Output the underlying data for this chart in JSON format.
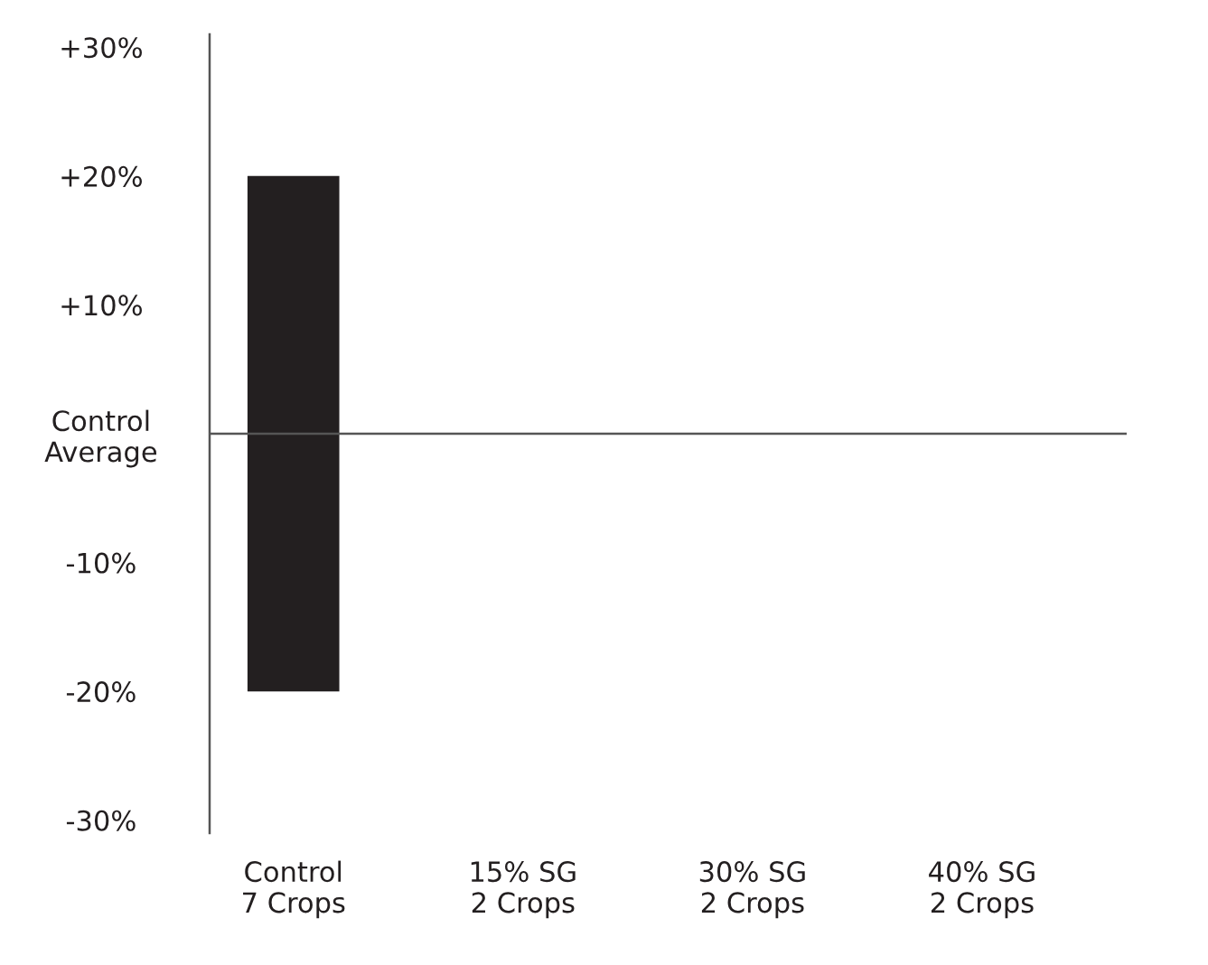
{
  "chart_data": {
    "type": "bar",
    "categories": [
      "Control\n7 Crops",
      "15% SG\n2 Crops",
      "30% SG\n2 Crops",
      "40% SG\n2 Crops"
    ],
    "values": [
      40,
      null,
      null,
      null
    ],
    "base": [
      -20,
      null,
      null,
      null
    ],
    "color": "#231f20",
    "ylim": [
      -31,
      31
    ],
    "yticks": [
      {
        "value": 30,
        "label": "+30%"
      },
      {
        "value": 20,
        "label": "+20%"
      },
      {
        "value": 10,
        "label": "+10%"
      },
      {
        "value": 0,
        "label": "Control\nAverage"
      },
      {
        "value": -10,
        "label": "-10%"
      },
      {
        "value": -20,
        "label": "-20%"
      },
      {
        "value": -30,
        "label": "-30%"
      }
    ],
    "ref_lines": [
      {
        "axis": "y",
        "value": 0,
        "label": null,
        "color": "#555555"
      }
    ],
    "grid": false,
    "legend": false
  }
}
